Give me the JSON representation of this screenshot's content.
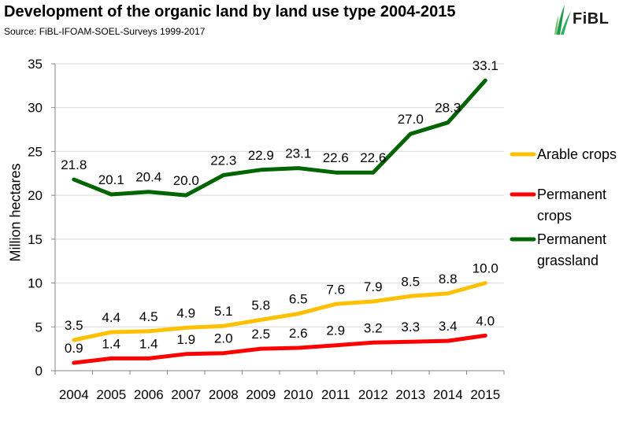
{
  "title": "Development of the organic land by land use type 2004-2015",
  "source": "Source: FiBL-IFOAM-SOEL-Surveys 1999-2017",
  "logo": {
    "text": "FiBL",
    "icon": "leaf-icon",
    "color": "#1a9a4a"
  },
  "chart_data": {
    "type": "line",
    "title": "Development of the organic land by land use type 2004-2015",
    "xlabel": "",
    "ylabel": "Million hectares",
    "x": [
      "2004",
      "2005",
      "2006",
      "2007",
      "2008",
      "2009",
      "2010",
      "2011",
      "2012",
      "2013",
      "2014",
      "2015"
    ],
    "ylim": [
      0,
      35
    ],
    "yticks": [
      0,
      5,
      10,
      15,
      20,
      25,
      30,
      35
    ],
    "grid": true,
    "legend": "right",
    "series": [
      {
        "name": "Arable crops",
        "color": "#FFC000",
        "values": [
          3.5,
          4.4,
          4.5,
          4.9,
          5.1,
          5.8,
          6.5,
          7.6,
          7.9,
          8.5,
          8.8,
          10.0
        ]
      },
      {
        "name": "Permanent crops",
        "color": "#FF0000",
        "values": [
          0.9,
          1.4,
          1.4,
          1.9,
          2.0,
          2.5,
          2.6,
          2.9,
          3.2,
          3.3,
          3.4,
          4.0
        ]
      },
      {
        "name": "Permanent grassland",
        "color": "#006400",
        "values": [
          21.8,
          20.1,
          20.4,
          20.0,
          22.3,
          22.9,
          23.1,
          22.6,
          22.6,
          27.0,
          28.3,
          33.1
        ]
      }
    ]
  }
}
